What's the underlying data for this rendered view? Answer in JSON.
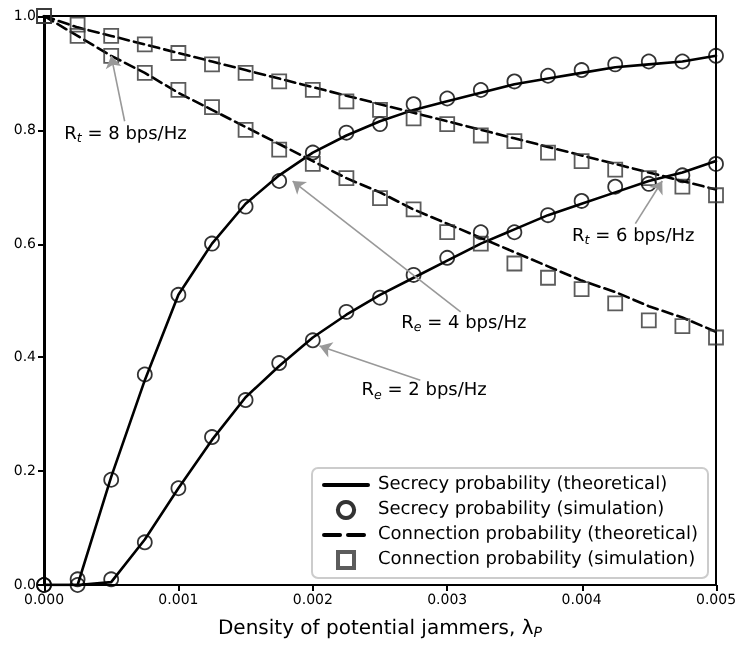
{
  "chart_data": {
    "type": "line",
    "xlabel": "Density of potential jammers, λ$_{P}$",
    "x": [
      0,
      0.00025,
      0.0005,
      0.00075,
      0.001,
      0.00125,
      0.0015,
      0.00175,
      0.002,
      0.00225,
      0.0025,
      0.00275,
      0.003,
      0.00325,
      0.0035,
      0.00375,
      0.004,
      0.00425,
      0.0045,
      0.00475,
      0.005
    ],
    "series": [
      {
        "name": "Secrecy probability (theoretical)",
        "line_style": "solid",
        "color": "#000000",
        "values": [
          0,
          0,
          0.19,
          0.36,
          0.51,
          0.6,
          0.67,
          0.72,
          0.76,
          0.79,
          0.815,
          0.835,
          0.85,
          0.865,
          0.88,
          0.89,
          0.9,
          0.91,
          0.915,
          0.92,
          0.93
        ]
      },
      {
        "name": "Secrecy probability (simulation)",
        "type": "scatter",
        "marker": "circle",
        "color": "#000000",
        "values": [
          0,
          0.01,
          0.185,
          0.37,
          0.51,
          0.6,
          0.665,
          0.71,
          0.76,
          0.795,
          0.81,
          0.845,
          0.855,
          0.87,
          0.885,
          0.895,
          0.905,
          0.915,
          0.92,
          0.92,
          0.93
        ]
      },
      {
        "name": "Connection probability (theoretical)",
        "line_style": "dashed",
        "color": "#000000",
        "values": [
          1,
          0.98,
          0.965,
          0.95,
          0.935,
          0.92,
          0.905,
          0.89,
          0.875,
          0.86,
          0.845,
          0.83,
          0.815,
          0.8,
          0.785,
          0.77,
          0.755,
          0.74,
          0.725,
          0.71,
          0.695
        ]
      },
      {
        "name": "Connection probability (simulation)",
        "type": "scatter",
        "marker": "square",
        "color": "#333333",
        "values": [
          1,
          0.985,
          0.965,
          0.95,
          0.935,
          0.915,
          0.9,
          0.885,
          0.87,
          0.85,
          0.835,
          0.82,
          0.81,
          0.79,
          0.78,
          0.76,
          0.745,
          0.73,
          0.715,
          0.7,
          0.685
        ]
      },
      {
        "line_style": "solid",
        "color": "#000000",
        "values": [
          0,
          0,
          0.005,
          0.08,
          0.17,
          0.255,
          0.33,
          0.385,
          0.435,
          0.475,
          0.51,
          0.54,
          0.57,
          0.6,
          0.625,
          0.65,
          0.67,
          0.69,
          0.71,
          0.725,
          0.745
        ]
      },
      {
        "type": "scatter",
        "marker": "circle",
        "color": "#000000",
        "values": [
          0,
          0,
          0.01,
          0.075,
          0.17,
          0.26,
          0.325,
          0.39,
          0.43,
          0.48,
          0.505,
          0.545,
          0.575,
          0.62,
          0.62,
          0.65,
          0.675,
          0.7,
          0.705,
          0.72,
          0.74
        ]
      },
      {
        "line_style": "dashed",
        "color": "#000000",
        "values": [
          1,
          0.965,
          0.93,
          0.9,
          0.865,
          0.835,
          0.805,
          0.775,
          0.745,
          0.715,
          0.69,
          0.66,
          0.635,
          0.61,
          0.585,
          0.56,
          0.535,
          0.515,
          0.49,
          0.47,
          0.445
        ]
      },
      {
        "type": "scatter",
        "marker": "square",
        "color": "#333333",
        "values": [
          1,
          0.965,
          0.93,
          0.9,
          0.87,
          0.84,
          0.8,
          0.765,
          0.74,
          0.715,
          0.68,
          0.66,
          0.62,
          0.6,
          0.565,
          0.54,
          0.52,
          0.495,
          0.465,
          0.455,
          0.435
        ]
      }
    ],
    "annotations": [
      {
        "text": "R$_{t}$ = 8 bps/Hz",
        "x": 0.0005,
        "y": 0.93
      },
      {
        "text": "R$_{t}$ = 6 bps/Hz",
        "x": 0.0046,
        "y": 0.71
      },
      {
        "text": "R$_{e}$ = 4 bps/Hz",
        "x": 0.00185,
        "y": 0.71
      },
      {
        "text": "R$_{e}$ = 2 bps/Hz",
        "x": 0.00205,
        "y": 0.42
      }
    ],
    "xlim": [
      0,
      0.005
    ],
    "ylim": [
      0,
      1
    ],
    "xticks": [
      {
        "value": 0,
        "label": "0.000"
      },
      {
        "value": 0.001,
        "label": "0.001"
      },
      {
        "value": 0.002,
        "label": "0.002"
      },
      {
        "value": 0.003,
        "label": "0.003"
      },
      {
        "value": 0.004,
        "label": "0.004"
      },
      {
        "value": 0.005,
        "label": "0.005"
      }
    ],
    "yticks": [
      {
        "value": 0,
        "label": "0.0"
      },
      {
        "value": 0.2,
        "label": "0.2"
      },
      {
        "value": 0.4,
        "label": "0.4"
      },
      {
        "value": 0.6,
        "label": "0.6"
      },
      {
        "value": 0.8,
        "label": "0.8"
      },
      {
        "value": 1,
        "label": "1.0"
      }
    ],
    "grid": false,
    "legend": "bottom right"
  }
}
